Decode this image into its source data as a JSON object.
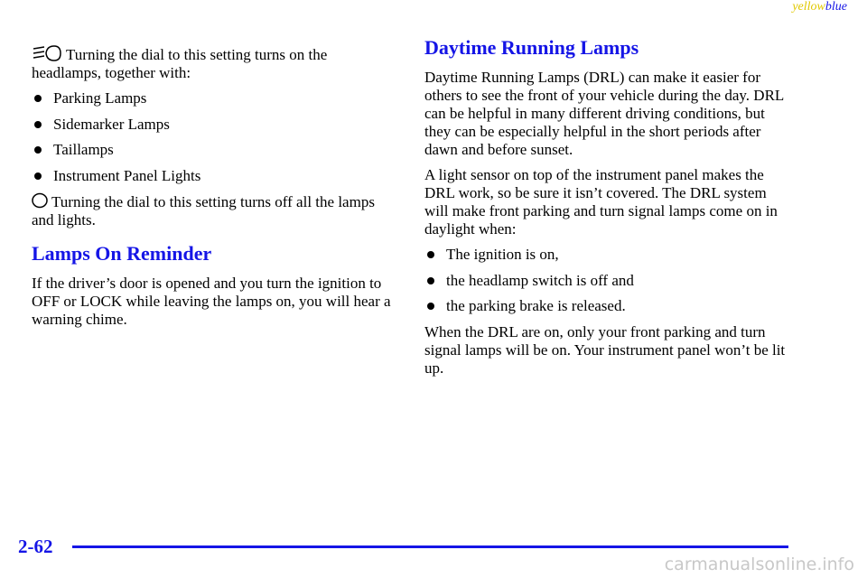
{
  "header": {
    "yellow": "yellow",
    "blue": "blue"
  },
  "left": {
    "intro": "Turning the dial to this setting turns on the headlamps, together with:",
    "bullets": [
      "Parking Lamps",
      "Sidemarker Lamps",
      "Taillamps",
      "Instrument Panel Lights"
    ],
    "off_text": "Turning the dial to this setting turns off all the lamps and lights.",
    "heading": "Lamps On Reminder",
    "paragraph": "If the driver’s door is opened and you turn the ignition to OFF or LOCK while leaving the lamps on, you will hear a warning chime."
  },
  "right": {
    "heading": "Daytime Running Lamps",
    "paragraphs": [
      "Daytime Running Lamps (DRL) can make it easier for others to see the front of your vehicle during the day. DRL can be helpful in many different driving conditions, but they can be especially helpful in the short periods after dawn and before sunset.",
      "A light sensor on top of the instrument panel makes the DRL work, so be sure it isn’t covered. The DRL system will make front parking and turn signal lamps come on in daylight when:"
    ],
    "bullets": [
      "The ignition is on,",
      "the headlamp switch is off and",
      "the parking brake is released."
    ],
    "closing": "When the DRL are on, only your front parking and turn signal lamps will be on. Your instrument panel won’t be lit up."
  },
  "footer": {
    "page_number": "2-62",
    "watermark": "carmanualsonline.info"
  }
}
